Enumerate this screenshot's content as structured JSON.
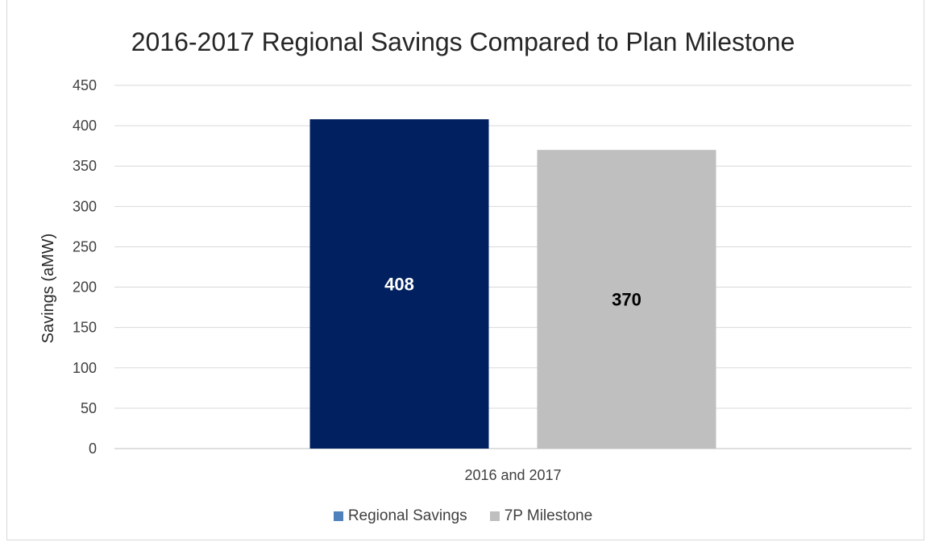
{
  "chart_data": {
    "type": "bar",
    "title": "2016-2017 Regional Savings Compared to Plan Milestone",
    "xlabel": "",
    "ylabel": "Savings (aMW)",
    "categories": [
      "2016 and 2017"
    ],
    "series": [
      {
        "name": "Regional Savings",
        "values": [
          408
        ],
        "color": "#002060",
        "label_color": "#ffffff",
        "legend_color": "#4f81bd"
      },
      {
        "name": "7P Milestone",
        "values": [
          370
        ],
        "color": "#bfbfbf",
        "label_color": "#000000",
        "legend_color": "#bfbfbf"
      }
    ],
    "ylim": [
      0,
      450
    ],
    "yticks": [
      0,
      50,
      100,
      150,
      200,
      250,
      300,
      350,
      400,
      450
    ],
    "grid": true,
    "legend_position": "bottom"
  }
}
